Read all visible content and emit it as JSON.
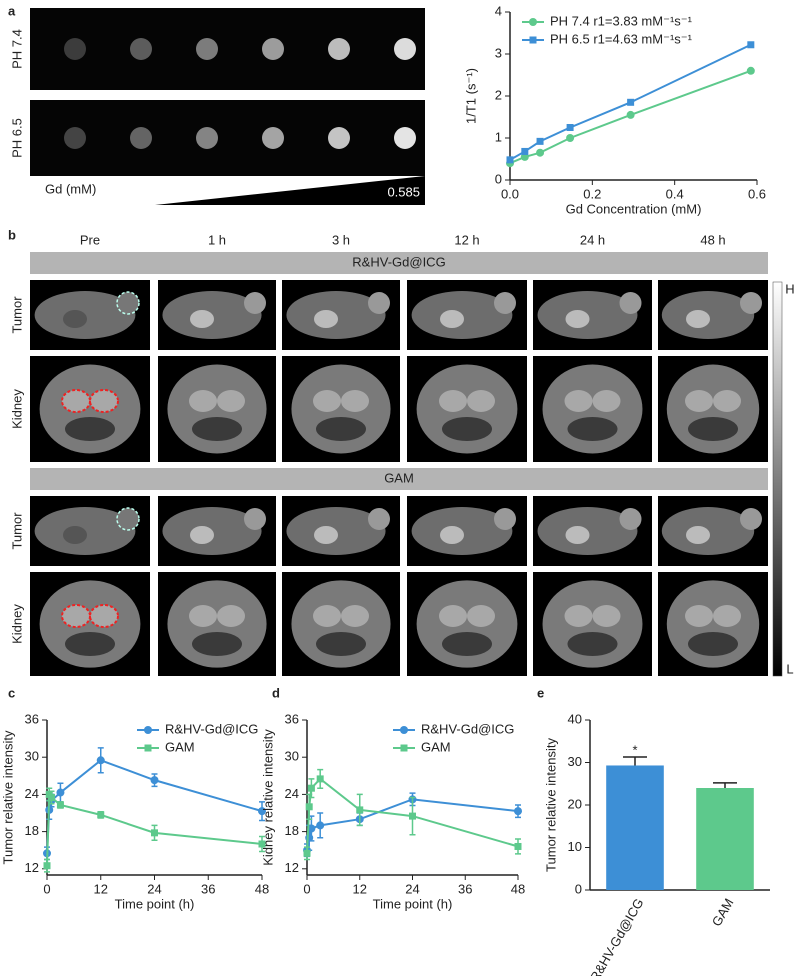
{
  "figure": {
    "panel_labels": [
      "a",
      "b",
      "c",
      "d",
      "e"
    ],
    "phantom": {
      "rows": [
        "PH 7.4",
        "PH 6.5"
      ],
      "gd_label": "Gd (mM)",
      "gd_max": 0.585
    },
    "mri": {
      "timepoints": [
        "Pre",
        "1 h",
        "3 h",
        "12 h",
        "24 h",
        "48 h"
      ],
      "groups": [
        "R&HV-Gd@ICG",
        "GAM"
      ],
      "rows": [
        "Tumor",
        "Kidney"
      ],
      "scale_high": "H",
      "scale_low": "L"
    }
  },
  "chart_data": [
    {
      "type": "line",
      "xlabel": "Gd Concentration (mM)",
      "ylabel": "1/T1 (s⁻¹)",
      "xlim": [
        0,
        0.6
      ],
      "ylim": [
        0,
        4
      ],
      "xticks": [
        {
          "value": 0,
          "label": "0.0"
        },
        0.2,
        0.4,
        0.6
      ],
      "yticks": [
        0,
        1,
        2,
        3,
        4
      ],
      "legend": "upper left",
      "series": [
        {
          "name": "PH 7.4 r1=3.83 mM⁻¹s⁻¹",
          "color": "#5dc98c",
          "marker": "circle",
          "x": [
            0,
            0.036,
            0.073,
            0.146,
            0.293,
            0.585
          ],
          "values": [
            0.4,
            0.55,
            0.65,
            1.0,
            1.55,
            2.6
          ]
        },
        {
          "name": "PH 6.5 r1=4.63 mM⁻¹s⁻¹",
          "color": "#3d8fd6",
          "marker": "square",
          "x": [
            0,
            0.036,
            0.073,
            0.146,
            0.293,
            0.585
          ],
          "values": [
            0.48,
            0.68,
            0.92,
            1.25,
            1.85,
            3.22
          ]
        }
      ]
    },
    {
      "type": "line",
      "xlabel": "Time point (h)",
      "ylabel": "Tumor relative intensity",
      "xlim": [
        0,
        48
      ],
      "ylim": [
        11,
        36
      ],
      "xticks": [
        0,
        12,
        24,
        36,
        48
      ],
      "yticks": [
        12,
        18,
        24,
        30,
        36
      ],
      "legend": "upper right",
      "series": [
        {
          "name": "R&HV-Gd@ICG",
          "color": "#3d8fd6",
          "marker": "circle",
          "x": [
            0,
            0.5,
            1,
            3,
            12,
            24,
            48
          ],
          "values": [
            14.5,
            21.5,
            23,
            24.3,
            29.5,
            26.3,
            21.3
          ],
          "errors": [
            1,
            1.5,
            1,
            1.5,
            2,
            1,
            1.5
          ]
        },
        {
          "name": "GAM",
          "color": "#5dc98c",
          "marker": "square",
          "x": [
            0,
            0.5,
            1,
            3,
            12,
            24,
            48
          ],
          "values": [
            12.5,
            24,
            23.5,
            22.3,
            20.7,
            17.8,
            16
          ],
          "errors": [
            1,
            1,
            1,
            0.5,
            0.5,
            1.2,
            1.2
          ]
        }
      ]
    },
    {
      "type": "line",
      "xlabel": "Time point (h)",
      "ylabel": "Kidney relative intensity",
      "xlim": [
        0,
        48
      ],
      "ylim": [
        11,
        36
      ],
      "xticks": [
        0,
        12,
        24,
        36,
        48
      ],
      "yticks": [
        12,
        18,
        24,
        30,
        36
      ],
      "legend": "upper right",
      "series": [
        {
          "name": "R&HV-Gd@ICG",
          "color": "#3d8fd6",
          "marker": "circle",
          "x": [
            0,
            0.5,
            1,
            3,
            12,
            24,
            48
          ],
          "values": [
            15,
            17,
            18.5,
            19,
            20,
            23.2,
            21.3
          ],
          "errors": [
            1,
            2,
            2,
            2,
            1,
            1,
            1
          ]
        },
        {
          "name": "GAM",
          "color": "#5dc98c",
          "marker": "square",
          "x": [
            0,
            0.5,
            1,
            3,
            12,
            24,
            48
          ],
          "values": [
            14.5,
            22,
            25,
            26.5,
            21.5,
            20.5,
            15.6
          ],
          "errors": [
            1,
            2,
            1.5,
            1.5,
            2.5,
            3,
            1.2
          ]
        }
      ]
    },
    {
      "type": "bar",
      "ylabel": "Tumor relative intensity",
      "categories": [
        "R&HV-Gd@ICG",
        "GAM"
      ],
      "values": [
        29.3,
        24
      ],
      "errors": [
        2,
        1.2
      ],
      "colors": [
        "#3d8fd6",
        "#5dc98c"
      ],
      "annotation": "*",
      "ylim": [
        0,
        40
      ],
      "yticks": [
        0,
        10,
        20,
        30,
        40
      ]
    }
  ]
}
